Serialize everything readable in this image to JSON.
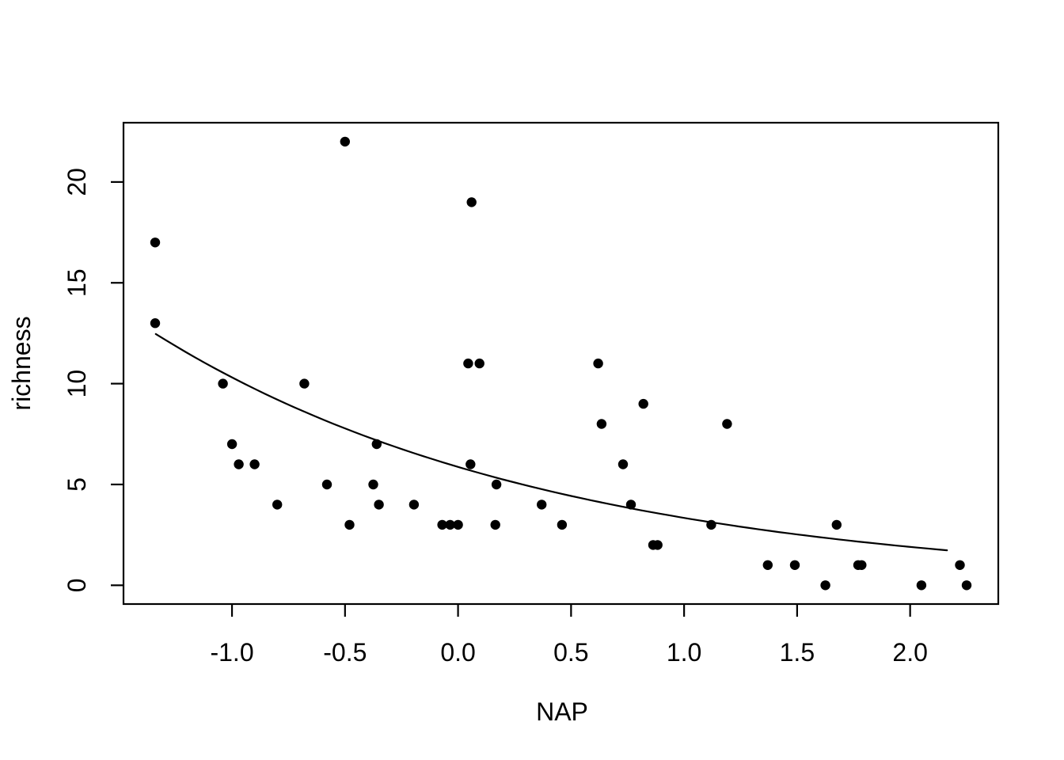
{
  "chart_data": {
    "type": "scatter",
    "title": "",
    "xlabel": "NAP",
    "ylabel": "richness",
    "xlim": [
      -1.48,
      2.39
    ],
    "ylim": [
      -0.93,
      22.94
    ],
    "grid": false,
    "legend": "none",
    "background_color": "#ffffff",
    "point_color": "#000000",
    "curve_color": "#000000",
    "axis_color": "#000000",
    "x_ticks": {
      "values": [
        -1.0,
        -0.5,
        0.0,
        0.5,
        1.0,
        1.5,
        2.0
      ],
      "labels": [
        "-1.0",
        "-0.5",
        "0.0",
        "0.5",
        "1.0",
        "1.5",
        "2.0"
      ]
    },
    "y_ticks": {
      "values": [
        0,
        5,
        10,
        15,
        20
      ],
      "labels": [
        "0",
        "5",
        "10",
        "15",
        "20"
      ]
    },
    "points_format": [
      "NAP",
      "richness"
    ],
    "points": [
      [
        -1.34,
        17
      ],
      [
        -1.34,
        13
      ],
      [
        -1.04,
        10
      ],
      [
        -1.0,
        7
      ],
      [
        -0.97,
        6
      ],
      [
        -0.9,
        6
      ],
      [
        -0.8,
        4
      ],
      [
        -0.68,
        10
      ],
      [
        -0.58,
        5
      ],
      [
        -0.5,
        22
      ],
      [
        -0.48,
        3
      ],
      [
        -0.375,
        5
      ],
      [
        -0.36,
        7
      ],
      [
        -0.35,
        4
      ],
      [
        -0.195,
        4
      ],
      [
        -0.07,
        3
      ],
      [
        -0.035,
        3
      ],
      [
        0.0,
        3
      ],
      [
        0.045,
        11
      ],
      [
        0.055,
        6
      ],
      [
        0.06,
        19
      ],
      [
        0.095,
        11
      ],
      [
        0.165,
        3
      ],
      [
        0.17,
        5
      ],
      [
        0.37,
        4
      ],
      [
        0.46,
        3
      ],
      [
        0.62,
        11
      ],
      [
        0.635,
        8
      ],
      [
        0.73,
        6
      ],
      [
        0.765,
        4
      ],
      [
        0.82,
        9
      ],
      [
        0.863,
        2
      ],
      [
        0.883,
        2
      ],
      [
        1.12,
        3
      ],
      [
        1.19,
        8
      ],
      [
        1.37,
        1
      ],
      [
        1.49,
        1
      ],
      [
        1.625,
        0
      ],
      [
        1.675,
        3
      ],
      [
        1.77,
        1
      ],
      [
        1.785,
        1
      ],
      [
        2.05,
        0
      ],
      [
        2.22,
        1
      ],
      [
        2.25,
        0
      ]
    ],
    "fit_curve": {
      "type": "exponential",
      "formula": "richness = exp(1.77 - 0.563 * NAP)",
      "intercept": 1.77,
      "slope": -0.563,
      "x_start": -1.337,
      "x_end": 2.163
    }
  }
}
